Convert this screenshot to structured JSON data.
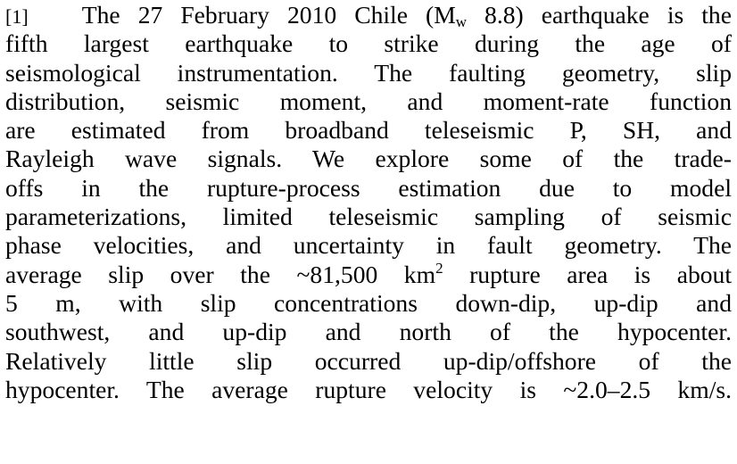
{
  "abstract": {
    "paragraph_number": "[1]",
    "lines": [
      {
        "pre": "The 27 February 2010 Chile (M",
        "sub": "w",
        "post": " 8.8) earthquake is the"
      },
      "fifth largest earthquake to strike during the age of",
      "seismological instrumentation. The faulting geometry, slip",
      "distribution, seismic moment, and moment-rate function",
      "are estimated from broadband teleseismic P, SH, and",
      "Rayleigh wave signals. We explore some of the trade-",
      "offs in the rupture-process estimation due to model",
      "parameterizations, limited teleseismic sampling of seismic",
      "phase velocities, and uncertainty in fault geometry. The",
      {
        "pre": "average slip over the ~81,500 km",
        "sup": "2",
        "post": " rupture area is about"
      },
      "5 m, with slip concentrations down-dip, up-dip and",
      "southwest, and up-dip and north of the hypocenter.",
      "Relatively little slip occurred up-dip/offshore of the",
      "hypocenter. The average rupture velocity is ~2.0–2.5 km/s."
    ]
  }
}
